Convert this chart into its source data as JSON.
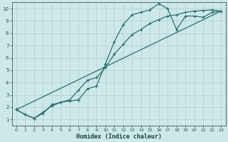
{
  "title": "",
  "xlabel": "Humidex (Indice chaleur)",
  "ylabel": "",
  "bg_color": "#cce8e8",
  "grid_color": "#b8d4d4",
  "line_color": "#2a7070",
  "xlim": [
    -0.5,
    23.5
  ],
  "ylim": [
    0.5,
    10.5
  ],
  "yticks": [
    1,
    2,
    3,
    4,
    5,
    6,
    7,
    8,
    9,
    10
  ],
  "xticks": [
    0,
    1,
    2,
    3,
    4,
    5,
    6,
    7,
    8,
    9,
    10,
    11,
    12,
    13,
    14,
    15,
    16,
    17,
    18,
    19,
    20,
    21,
    22,
    23
  ],
  "line1_x": [
    0,
    1,
    2,
    3,
    4,
    5,
    6,
    7,
    8,
    9,
    10,
    11,
    12,
    13,
    14,
    15,
    16,
    17,
    18,
    19,
    20,
    21,
    22,
    23
  ],
  "line1_y": [
    1.8,
    1.4,
    1.1,
    1.5,
    2.2,
    2.4,
    2.5,
    2.6,
    3.5,
    3.7,
    5.5,
    7.3,
    8.7,
    9.5,
    9.7,
    9.9,
    10.4,
    10.0,
    8.3,
    9.4,
    9.4,
    9.3,
    9.7,
    9.8
  ],
  "line2_x": [
    0,
    1,
    2,
    3,
    4,
    5,
    6,
    7,
    8,
    9,
    10,
    11,
    12,
    13,
    14,
    15,
    16,
    17,
    18,
    19,
    20,
    21,
    22,
    23
  ],
  "line2_y": [
    1.8,
    1.4,
    1.1,
    1.6,
    2.1,
    2.4,
    2.6,
    3.4,
    4.2,
    4.4,
    5.2,
    6.3,
    7.1,
    7.9,
    8.3,
    8.8,
    9.1,
    9.4,
    9.5,
    9.7,
    9.8,
    9.85,
    9.9,
    9.8
  ],
  "line3_x": [
    0,
    23
  ],
  "line3_y": [
    1.8,
    9.8
  ],
  "marker_size": 3.5,
  "lw": 0.9
}
